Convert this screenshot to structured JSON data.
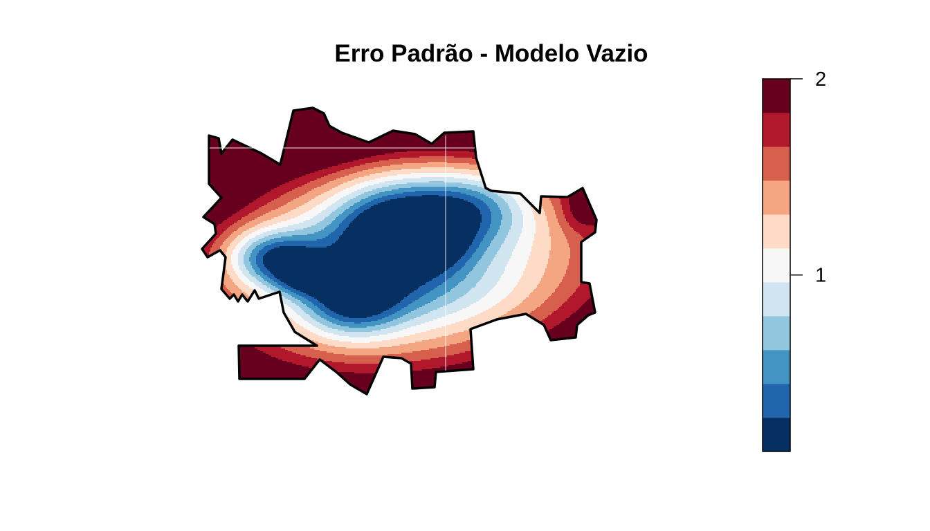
{
  "chart_data": {
    "type": "heatmap",
    "title": "Erro Padrão - Modelo Vazio",
    "xlabel": "",
    "ylabel": "",
    "grid": false,
    "legend": "right",
    "colorbar": {
      "range": [
        0.1,
        2.0
      ],
      "ticks": [
        {
          "value": 1,
          "label": "1"
        },
        {
          "value": 2,
          "label": "2"
        }
      ],
      "palette": [
        "#053061",
        "#2166ac",
        "#4393c3",
        "#92c5de",
        "#d1e5f0",
        "#f7f7f7",
        "#fddbc7",
        "#f4a582",
        "#d6604d",
        "#b2182b",
        "#67001f"
      ]
    }
  }
}
